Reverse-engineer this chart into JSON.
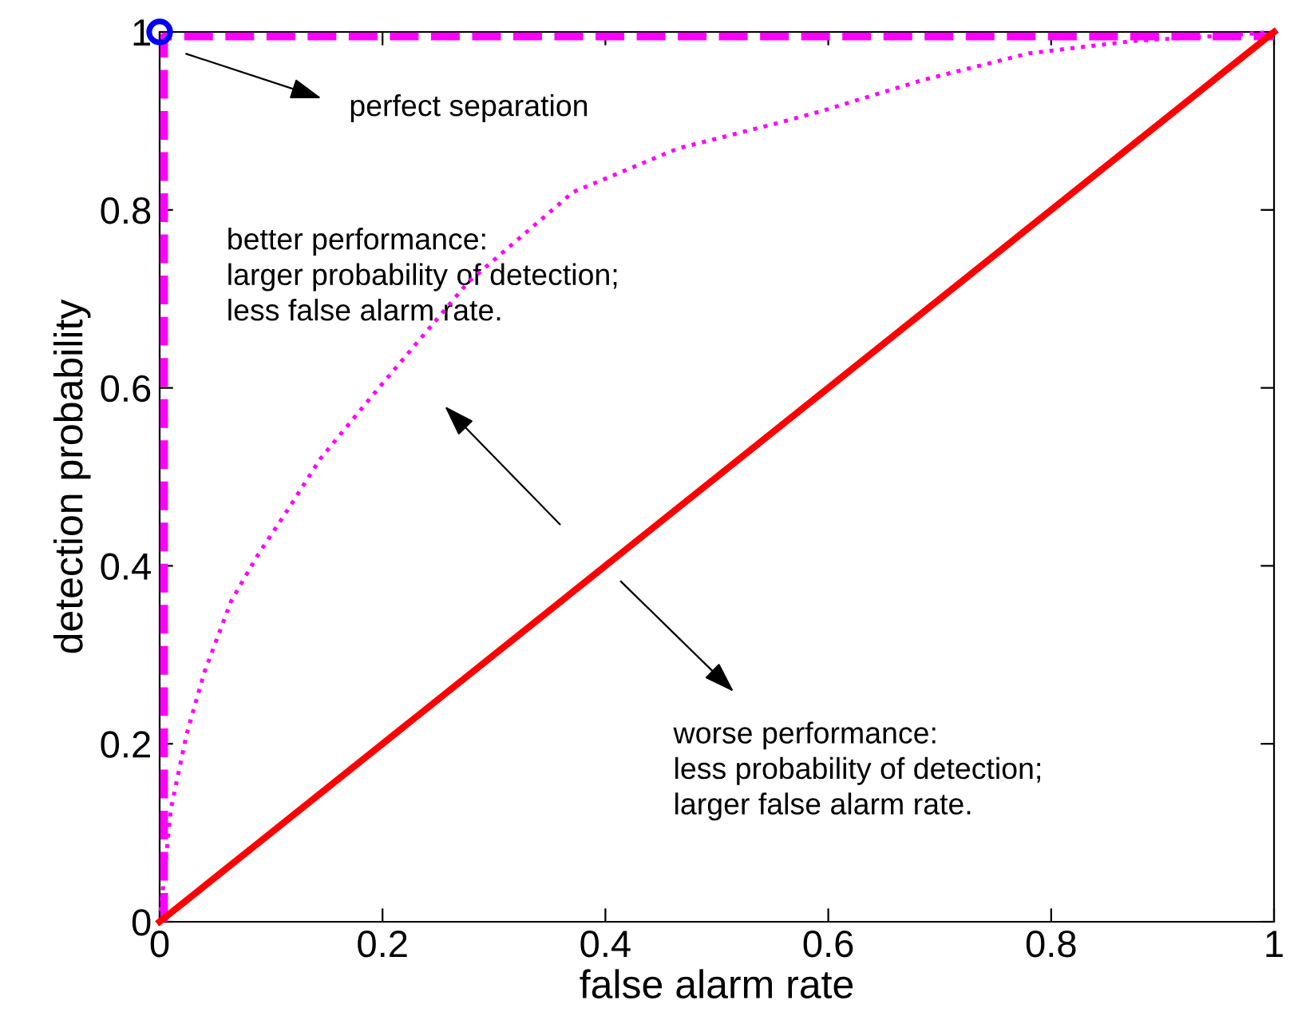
{
  "chart_data": {
    "type": "line",
    "xlabel": "false alarm rate",
    "ylabel": "detection probability",
    "xlim": [
      0,
      1
    ],
    "ylim": [
      0,
      1
    ],
    "xticks": [
      0,
      0.2,
      0.4,
      0.6,
      0.8,
      1
    ],
    "yticks": [
      0,
      0.2,
      0.4,
      0.6,
      0.8,
      1
    ],
    "grid": false,
    "legend": false,
    "series": [
      {
        "color": "#ff00ff",
        "line_style": "dashed",
        "x": [
          0.004,
          0.004,
          1
        ],
        "values": [
          0,
          0.995,
          0.995
        ]
      },
      {
        "color": "#ff00ff",
        "line_style": "dotted",
        "x": [
          0,
          0.002,
          0.01,
          0.024,
          0.04,
          0.064,
          0.087,
          0.116,
          0.144,
          0.19,
          0.277,
          0.371,
          0.465,
          0.556,
          0.591,
          0.685,
          0.78,
          0.875,
          0.969,
          1
        ],
        "values": [
          0,
          0.025,
          0.126,
          0.21,
          0.28,
          0.36,
          0.41,
          0.465,
          0.52,
          0.59,
          0.719,
          0.82,
          0.869,
          0.898,
          0.91,
          0.946,
          0.976,
          0.99,
          0.997,
          1
        ]
      },
      {
        "color": "#ff0000",
        "line_style": "solid",
        "x": [
          0,
          1
        ],
        "values": [
          0,
          1
        ]
      },
      {
        "type": "scatter",
        "color": "#0000ff",
        "marker": "circle",
        "x": [
          0
        ],
        "values": [
          1
        ]
      }
    ],
    "annotations": [
      "perfect separation",
      "better performance:\nlarger probability of detection;\nless false alarm rate.",
      "worse performance:\nless probability of detection;\nlarger false alarm rate."
    ]
  }
}
